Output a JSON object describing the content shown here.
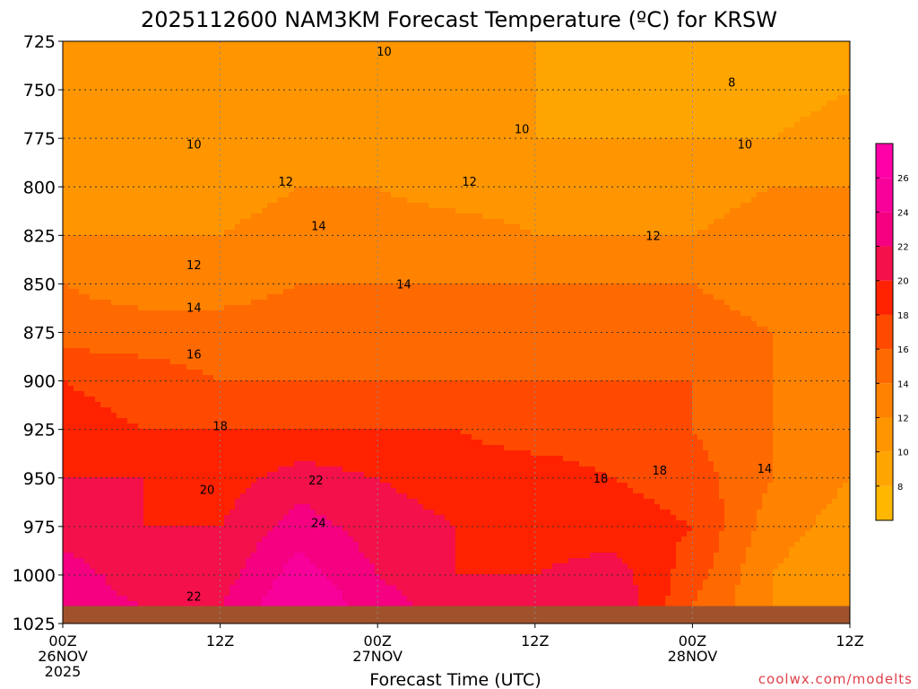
{
  "chart_data": {
    "type": "heatmap",
    "title": "2025112600 NAM3KM Forecast Temperature (ºC) for KRSW",
    "xlabel": "Forecast Time (UTC)",
    "ylabel": "",
    "x_range_hours": [
      0,
      60
    ],
    "y_range_hPa": [
      725,
      1025
    ],
    "y_ticks": [
      725,
      750,
      775,
      800,
      825,
      850,
      875,
      900,
      925,
      950,
      975,
      1000,
      1025
    ],
    "x_ticks": [
      {
        "hour": 0,
        "lines": [
          "00Z",
          "26NOV",
          "2025"
        ]
      },
      {
        "hour": 12,
        "lines": [
          "12Z"
        ]
      },
      {
        "hour": 24,
        "lines": [
          "00Z",
          "27NOV"
        ]
      },
      {
        "hour": 36,
        "lines": [
          "12Z"
        ]
      },
      {
        "hour": 48,
        "lines": [
          "00Z",
          "28NOV"
        ]
      },
      {
        "hour": 60,
        "lines": [
          "12Z"
        ]
      }
    ],
    "grid": true,
    "legend_position": "right",
    "colorbar": {
      "ticks": [
        8,
        10,
        12,
        14,
        16,
        18,
        20,
        22,
        24,
        26
      ],
      "bins": [
        {
          "min": 6,
          "max": 8,
          "color": "#ffb700"
        },
        {
          "min": 8,
          "max": 10,
          "color": "#ffa500"
        },
        {
          "min": 10,
          "max": 12,
          "color": "#ff9600"
        },
        {
          "min": 12,
          "max": 14,
          "color": "#ff8200"
        },
        {
          "min": 14,
          "max": 16,
          "color": "#ff6a00"
        },
        {
          "min": 16,
          "max": 18,
          "color": "#ff4a00"
        },
        {
          "min": 18,
          "max": 20,
          "color": "#ff2200"
        },
        {
          "min": 20,
          "max": 22,
          "color": "#f4104a"
        },
        {
          "min": 22,
          "max": 24,
          "color": "#f40080"
        },
        {
          "min": 24,
          "max": 26,
          "color": "#f8009a"
        },
        {
          "min": 26,
          "max": 28,
          "color": "#ff00a8"
        }
      ]
    },
    "ground_color": "#a0522d",
    "surface_pressure_hPa": 1016,
    "temperature_profiles": [
      {
        "hour": 0,
        "levels": [
          [
            725,
            12
          ],
          [
            750,
            11
          ],
          [
            775,
            11
          ],
          [
            800,
            11
          ],
          [
            825,
            12
          ],
          [
            850,
            14
          ],
          [
            875,
            15
          ],
          [
            900,
            18
          ],
          [
            925,
            19
          ],
          [
            950,
            20
          ],
          [
            975,
            21
          ],
          [
            1000,
            23
          ],
          [
            1016,
            23
          ]
        ]
      },
      {
        "hour": 6,
        "levels": [
          [
            725,
            11
          ],
          [
            750,
            11
          ],
          [
            775,
            10
          ],
          [
            800,
            10
          ],
          [
            825,
            12
          ],
          [
            850,
            13
          ],
          [
            875,
            15
          ],
          [
            900,
            17
          ],
          [
            925,
            18
          ],
          [
            950,
            20
          ],
          [
            975,
            20
          ],
          [
            1000,
            21
          ],
          [
            1016,
            22
          ]
        ]
      },
      {
        "hour": 12,
        "levels": [
          [
            725,
            11
          ],
          [
            750,
            11
          ],
          [
            775,
            11
          ],
          [
            800,
            11
          ],
          [
            825,
            12
          ],
          [
            850,
            13
          ],
          [
            875,
            15
          ],
          [
            900,
            16
          ],
          [
            925,
            18
          ],
          [
            950,
            19
          ],
          [
            975,
            20
          ],
          [
            1000,
            21
          ],
          [
            1016,
            22
          ]
        ]
      },
      {
        "hour": 18,
        "levels": [
          [
            725,
            10
          ],
          [
            750,
            10
          ],
          [
            775,
            11
          ],
          [
            800,
            12
          ],
          [
            825,
            13
          ],
          [
            850,
            14
          ],
          [
            875,
            15
          ],
          [
            900,
            16
          ],
          [
            925,
            18
          ],
          [
            950,
            21
          ],
          [
            975,
            23
          ],
          [
            1000,
            25
          ],
          [
            1016,
            26
          ]
        ]
      },
      {
        "hour": 24,
        "levels": [
          [
            725,
            10
          ],
          [
            750,
            10
          ],
          [
            775,
            11
          ],
          [
            800,
            12
          ],
          [
            825,
            13
          ],
          [
            850,
            14
          ],
          [
            875,
            15
          ],
          [
            900,
            16
          ],
          [
            925,
            18
          ],
          [
            950,
            20
          ],
          [
            975,
            21
          ],
          [
            1000,
            22
          ],
          [
            1016,
            23
          ]
        ]
      },
      {
        "hour": 30,
        "levels": [
          [
            725,
            10
          ],
          [
            750,
            10
          ],
          [
            775,
            10
          ],
          [
            800,
            11
          ],
          [
            825,
            13
          ],
          [
            850,
            14
          ],
          [
            875,
            15
          ],
          [
            900,
            16
          ],
          [
            925,
            18
          ],
          [
            950,
            19
          ],
          [
            975,
            20
          ],
          [
            1000,
            20
          ],
          [
            1016,
            21
          ]
        ]
      },
      {
        "hour": 36,
        "levels": [
          [
            725,
            10
          ],
          [
            750,
            10
          ],
          [
            775,
            10
          ],
          [
            800,
            11
          ],
          [
            825,
            12
          ],
          [
            850,
            14
          ],
          [
            875,
            15
          ],
          [
            900,
            16
          ],
          [
            925,
            17
          ],
          [
            950,
            19
          ],
          [
            975,
            19
          ],
          [
            1000,
            20
          ],
          [
            1016,
            21
          ]
        ]
      },
      {
        "hour": 42,
        "levels": [
          [
            725,
            8
          ],
          [
            750,
            9
          ],
          [
            775,
            10
          ],
          [
            800,
            11
          ],
          [
            825,
            12
          ],
          [
            850,
            14
          ],
          [
            875,
            15
          ],
          [
            900,
            16
          ],
          [
            925,
            17
          ],
          [
            950,
            18
          ],
          [
            975,
            19
          ],
          [
            1000,
            21
          ],
          [
            1016,
            22
          ]
        ]
      },
      {
        "hour": 48,
        "levels": [
          [
            725,
            9
          ],
          [
            750,
            9
          ],
          [
            775,
            10
          ],
          [
            800,
            11
          ],
          [
            825,
            12
          ],
          [
            850,
            14
          ],
          [
            875,
            15
          ],
          [
            900,
            16
          ],
          [
            925,
            16
          ],
          [
            950,
            17
          ],
          [
            975,
            18
          ],
          [
            1000,
            17
          ],
          [
            1016,
            16
          ]
        ]
      },
      {
        "hour": 54,
        "levels": [
          [
            725,
            8
          ],
          [
            750,
            9
          ],
          [
            775,
            10
          ],
          [
            800,
            12
          ],
          [
            825,
            13
          ],
          [
            850,
            13
          ],
          [
            875,
            14
          ],
          [
            900,
            14
          ],
          [
            925,
            14
          ],
          [
            950,
            14
          ],
          [
            975,
            13
          ],
          [
            1000,
            12
          ],
          [
            1016,
            12
          ]
        ]
      },
      {
        "hour": 60,
        "levels": [
          [
            725,
            10
          ],
          [
            750,
            10
          ],
          [
            775,
            11
          ],
          [
            800,
            12
          ],
          [
            825,
            13
          ],
          [
            850,
            13
          ],
          [
            875,
            13
          ],
          [
            900,
            13
          ],
          [
            925,
            13
          ],
          [
            950,
            12
          ],
          [
            975,
            11
          ],
          [
            1000,
            10
          ],
          [
            1016,
            10
          ]
        ]
      }
    ],
    "contour_labels": [
      {
        "text": "10",
        "hour": 24.5,
        "p": 730
      },
      {
        "text": "8",
        "hour": 51,
        "p": 746
      },
      {
        "text": "10",
        "hour": 35,
        "p": 770
      },
      {
        "text": "10",
        "hour": 10,
        "p": 778
      },
      {
        "text": "10",
        "hour": 52,
        "p": 778
      },
      {
        "text": "12",
        "hour": 17,
        "p": 797
      },
      {
        "text": "12",
        "hour": 31,
        "p": 797
      },
      {
        "text": "14",
        "hour": 19.5,
        "p": 820
      },
      {
        "text": "12",
        "hour": 45,
        "p": 825
      },
      {
        "text": "12",
        "hour": 10,
        "p": 840
      },
      {
        "text": "14",
        "hour": 26,
        "p": 850
      },
      {
        "text": "14",
        "hour": 10,
        "p": 862
      },
      {
        "text": "16",
        "hour": 10,
        "p": 886
      },
      {
        "text": "18",
        "hour": 12,
        "p": 923
      },
      {
        "text": "22",
        "hour": 19.3,
        "p": 951
      },
      {
        "text": "18",
        "hour": 41,
        "p": 950
      },
      {
        "text": "18",
        "hour": 45.5,
        "p": 946
      },
      {
        "text": "14",
        "hour": 53.5,
        "p": 945
      },
      {
        "text": "20",
        "hour": 11,
        "p": 956
      },
      {
        "text": "24",
        "hour": 19.5,
        "p": 973
      },
      {
        "text": "22",
        "hour": 10,
        "p": 1011
      }
    ],
    "watermark": "coolwx.com/modelts"
  }
}
